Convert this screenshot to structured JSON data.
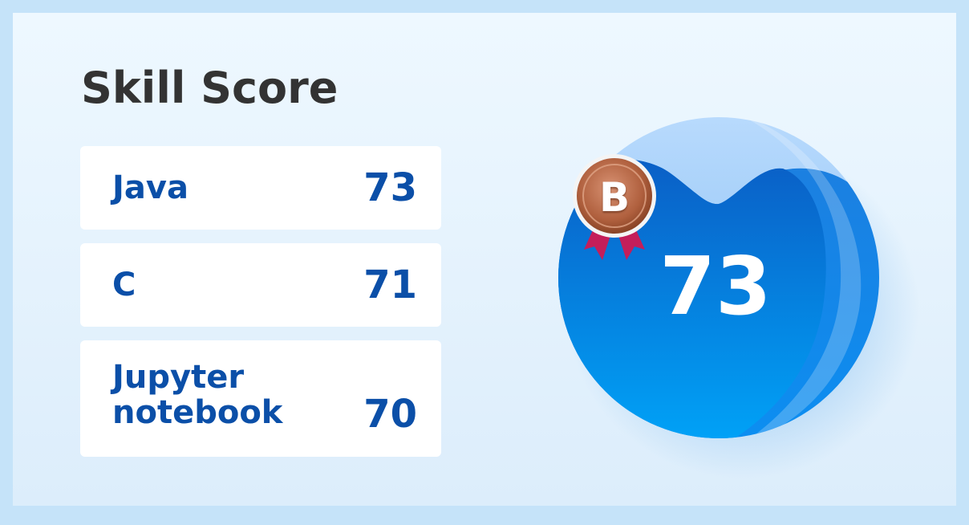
{
  "title": "Skill Score",
  "skills": [
    {
      "name": "Java",
      "score": "73"
    },
    {
      "name": "C",
      "score": "71"
    },
    {
      "name": "Jupyter notebook",
      "score": "70"
    }
  ],
  "overall": {
    "score": "73",
    "grade": "B"
  },
  "colors": {
    "accent": "#0b4fa8",
    "gauge_blue": "#0a7ee0",
    "badge_bronze": "#b56a4a",
    "ribbon": "#c41e5a"
  },
  "icons": [
    "grade-medal-icon",
    "score-gauge-icon"
  ]
}
